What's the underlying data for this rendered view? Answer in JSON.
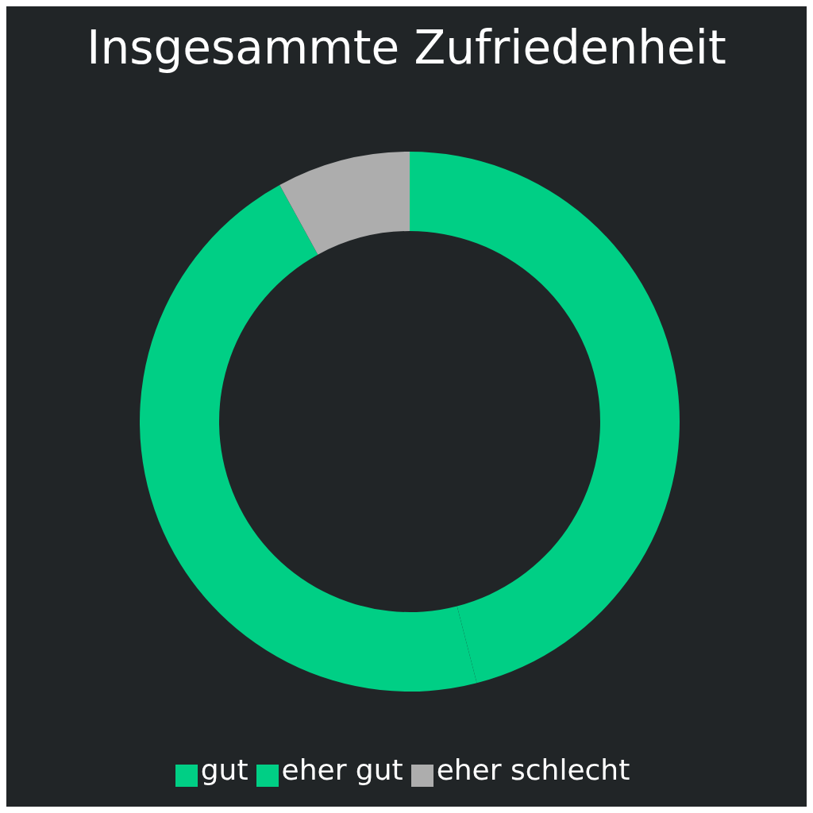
{
  "chart_data": {
    "type": "donut",
    "title": "Insgesammte Zufriedenheit",
    "categories": [
      "gut",
      "eher gut",
      "eher schlecht"
    ],
    "values": [
      46,
      46,
      8
    ],
    "colors": [
      "#00cf85",
      "#00cf85",
      "#adadad"
    ],
    "legend": "bottom"
  }
}
